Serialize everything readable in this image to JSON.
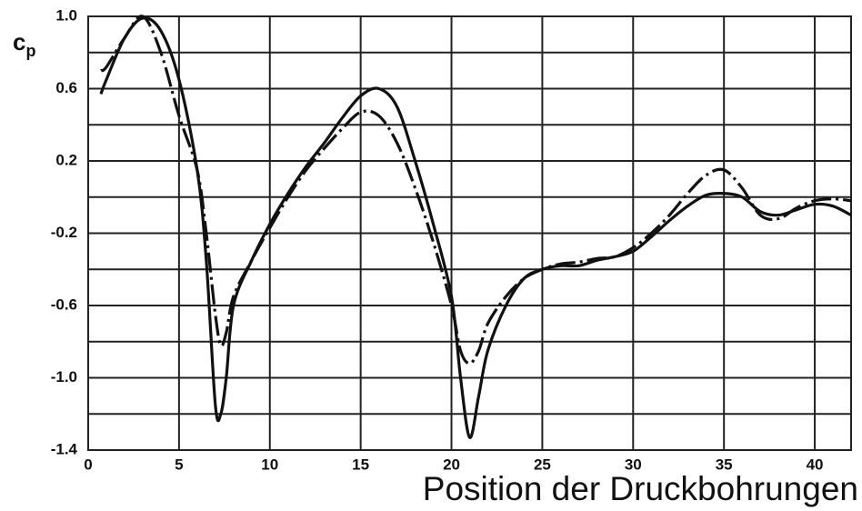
{
  "chart_data": {
    "type": "line",
    "x_label": "Position der Druckbohrungen",
    "y_label": {
      "base": "c",
      "sub": "p"
    },
    "xlim": [
      0,
      42
    ],
    "ylim": [
      -1.4,
      1.0
    ],
    "xticks": [
      0,
      5,
      10,
      15,
      20,
      25,
      30,
      35,
      40
    ],
    "yticks": [
      {
        "value": 1,
        "label": "1.0"
      },
      0.6,
      0.2,
      -0.2,
      -0.6,
      {
        "value": -1,
        "label": "-1.0"
      },
      -1.4
    ],
    "yminor": [
      0.8,
      0.4,
      0,
      -0.4,
      -0.8,
      -1.2
    ],
    "grid": true,
    "x": [
      0.7,
      1,
      2,
      3,
      4,
      5,
      6,
      6.5,
      7,
      7.3,
      7.6,
      8,
      9,
      10,
      11,
      12,
      13,
      14,
      15,
      16,
      17,
      18,
      19,
      20,
      20.5,
      21,
      21.5,
      22,
      23,
      24,
      25,
      26,
      27,
      28,
      29,
      30,
      31,
      32,
      33,
      34,
      35,
      36,
      37,
      38,
      39,
      40,
      41,
      42
    ],
    "series": [
      {
        "color": "#111111",
        "dash": "solid",
        "values": [
          0.57,
          0.65,
          0.88,
          0.99,
          0.92,
          0.65,
          0.15,
          -0.35,
          -1.15,
          -1.2,
          -1.0,
          -0.6,
          -0.35,
          -0.15,
          0.02,
          0.17,
          0.3,
          0.44,
          0.56,
          0.6,
          0.5,
          0.2,
          -0.15,
          -0.55,
          -1.0,
          -1.33,
          -1.1,
          -0.85,
          -0.6,
          -0.45,
          -0.4,
          -0.38,
          -0.38,
          -0.35,
          -0.33,
          -0.3,
          -0.22,
          -0.13,
          -0.05,
          0.01,
          0.02,
          0.0,
          -0.08,
          -0.1,
          -0.07,
          -0.04,
          -0.05,
          -0.1
        ]
      },
      {
        "color": "#111111",
        "dash": "dashdot",
        "values": [
          0.7,
          0.72,
          0.88,
          1.0,
          0.8,
          0.45,
          0.15,
          -0.2,
          -0.65,
          -0.82,
          -0.75,
          -0.55,
          -0.35,
          -0.17,
          0.0,
          0.15,
          0.27,
          0.38,
          0.47,
          0.45,
          0.3,
          0.05,
          -0.25,
          -0.6,
          -0.85,
          -0.92,
          -0.85,
          -0.7,
          -0.55,
          -0.45,
          -0.4,
          -0.37,
          -0.36,
          -0.34,
          -0.33,
          -0.28,
          -0.2,
          -0.1,
          0.02,
          0.12,
          0.15,
          0.05,
          -0.1,
          -0.12,
          -0.06,
          -0.02,
          -0.01,
          -0.02
        ]
      }
    ]
  }
}
